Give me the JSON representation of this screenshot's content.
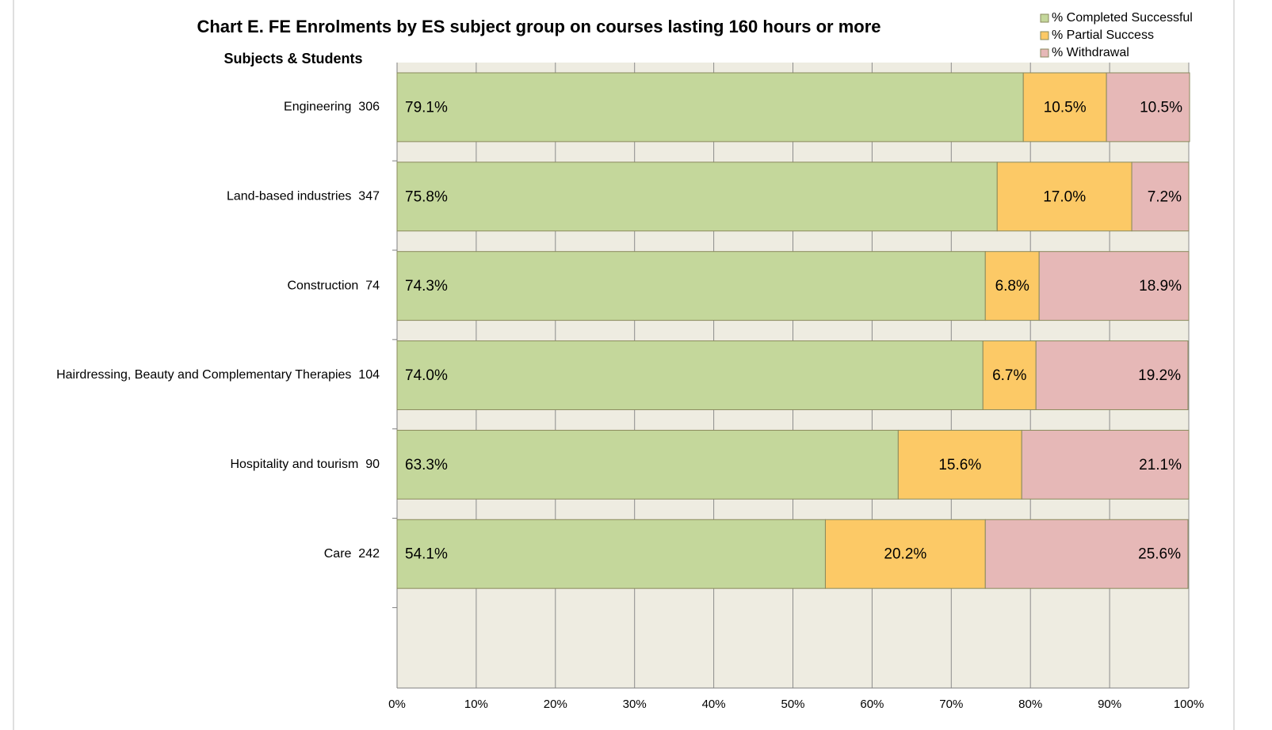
{
  "chart_data": {
    "type": "stacked-barh",
    "title": "Chart E. FE Enrolments by ES subject group on courses lasting 160 hours or more",
    "y_label": "Subjects & Students",
    "categories": [
      "Engineering  306",
      "Land-based industries  347",
      "Construction  74",
      "Hairdressing, Beauty and Complementary Therapies  104",
      "Hospitality and tourism  90",
      "Care  242",
      null
    ],
    "series": [
      {
        "name": "% Completed Successful",
        "color": "#c4d79b",
        "values": [
          79.1,
          75.8,
          74.3,
          74.0,
          63.3,
          54.1,
          null
        ],
        "value_labels": [
          "79.1%",
          "75.8%",
          "74.3%",
          "74.0%",
          "63.3%",
          "54.1%",
          null
        ]
      },
      {
        "name": "% Partial Success",
        "color": "#fcc966",
        "values": [
          10.5,
          17.0,
          6.8,
          6.7,
          15.6,
          20.2,
          null
        ],
        "value_labels": [
          "10.5%",
          "17.0%",
          "6.8%",
          "6.7%",
          "15.6%",
          "20.2%",
          null
        ]
      },
      {
        "name": "% Withdrawal",
        "color": "#e6b8b7",
        "values": [
          10.5,
          7.2,
          18.9,
          19.2,
          21.1,
          25.6,
          null
        ],
        "value_labels": [
          "10.5%",
          "7.2%",
          "18.9%",
          "19.2%",
          "21.1%",
          "25.6%",
          null
        ]
      }
    ],
    "xlim": [
      0,
      100
    ],
    "xticks": [
      {
        "value": 0,
        "label": "0%"
      },
      {
        "value": 10,
        "label": "10%"
      },
      {
        "value": 20,
        "label": "20%"
      },
      {
        "value": 30,
        "label": "30%"
      },
      {
        "value": 40,
        "label": "40%"
      },
      {
        "value": 50,
        "label": "50%"
      },
      {
        "value": 60,
        "label": "60%"
      },
      {
        "value": 70,
        "label": "70%"
      },
      {
        "value": 80,
        "label": "80%"
      },
      {
        "value": 90,
        "label": "90%"
      },
      {
        "value": 100,
        "label": "100%"
      }
    ],
    "grid": true,
    "legend": "top-right"
  }
}
